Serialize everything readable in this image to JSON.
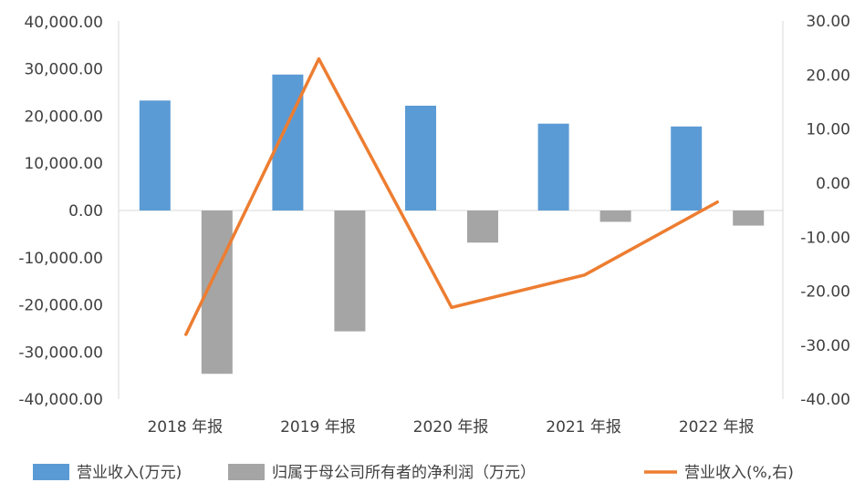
{
  "chart_data": {
    "type": "bar",
    "categories": [
      "2018 年报",
      "2019 年报",
      "2020 年报",
      "2021 年报",
      "2022 年报"
    ],
    "series": [
      {
        "name": "营业收入(万元)",
        "type": "bar",
        "axis": "left",
        "color": "#5B9BD5",
        "values": [
          23300,
          28800,
          22200,
          18400,
          17800
        ]
      },
      {
        "name": "归属于母公司所有者的净利润（万元）",
        "type": "bar",
        "axis": "left",
        "color": "#A5A5A5",
        "values": [
          -34600,
          -25600,
          -6800,
          -2400,
          -3200
        ]
      },
      {
        "name": "营业收入(%,右)",
        "type": "line",
        "axis": "right",
        "color": "#ED7D31",
        "values": [
          -28.0,
          23.0,
          -23.0,
          -17.0,
          -3.5
        ]
      }
    ],
    "y_left": {
      "min": -40000,
      "max": 40000,
      "step": 10000,
      "tick_labels": [
        "40,000.00",
        "30,000.00",
        "20,000.00",
        "10,000.00",
        "0.00",
        "-10,000.00",
        "-20,000.00",
        "-30,000.00",
        "-40,000.00"
      ]
    },
    "y_right": {
      "min": -40,
      "max": 30,
      "step": 10,
      "tick_labels": [
        "30.00",
        "20.00",
        "10.00",
        "0.00",
        "-10.00",
        "-20.00",
        "-30.00",
        "-40.00"
      ]
    },
    "grid": false,
    "legend": "bottom"
  }
}
